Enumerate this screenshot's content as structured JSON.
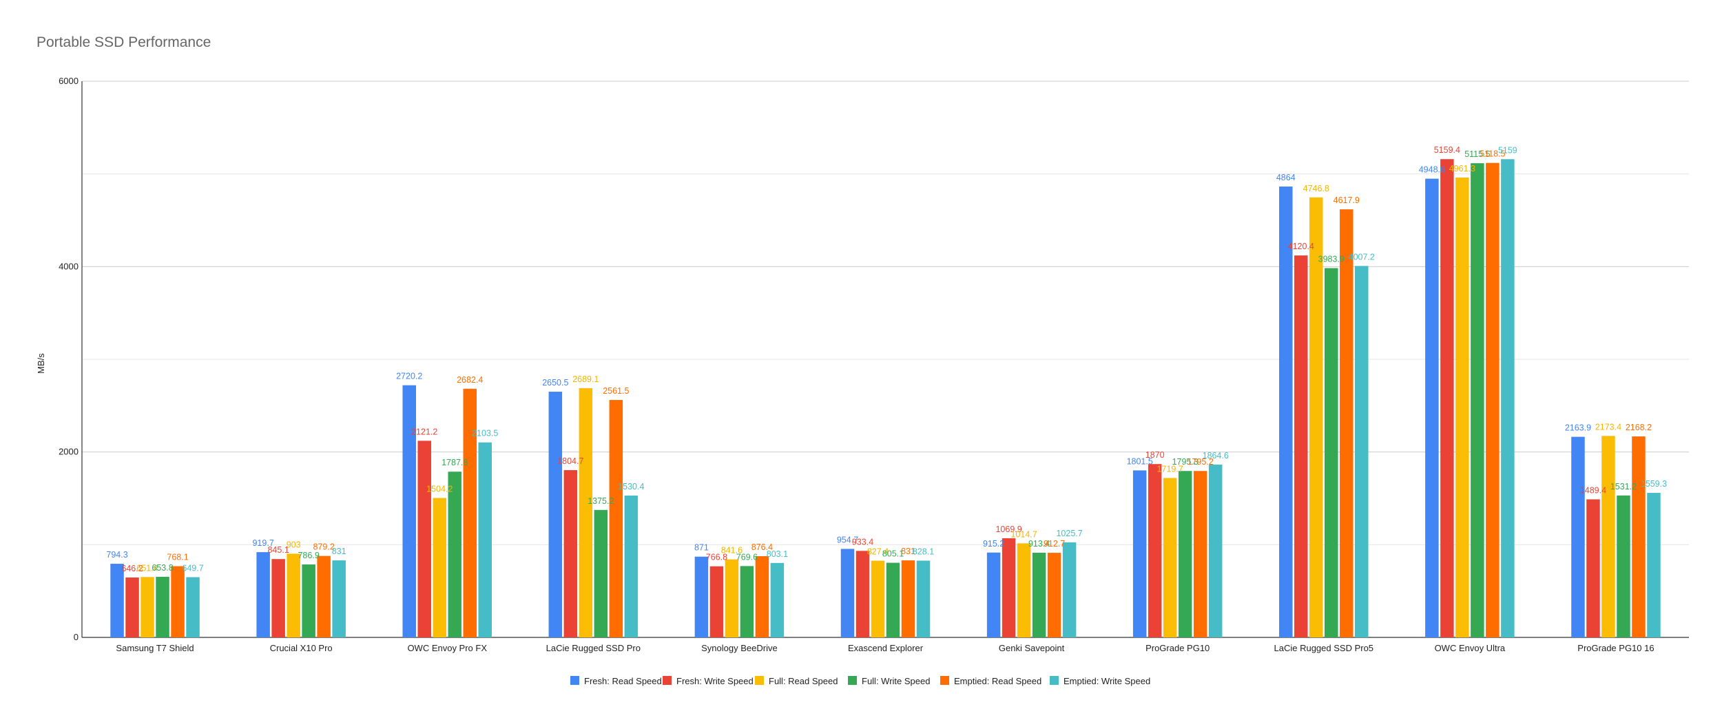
{
  "chart_data": {
    "type": "bar",
    "title": "Portable SSD Performance",
    "xlabel": "",
    "ylabel": "MB/s",
    "ylim": [
      0,
      6000
    ],
    "yticks": [
      0,
      2000,
      4000,
      6000
    ],
    "grid": true,
    "legend_position": "bottom",
    "categories": [
      "Samsung T7 Shield",
      "Crucial X10 Pro",
      "OWC Envoy Pro FX",
      "LaCie Rugged SSD Pro",
      "Synology BeeDrive",
      "Exascend Explorer",
      "Genki Savepoint",
      "ProGrade PG10",
      "LaCie Rugged SSD Pro5",
      "OWC Envoy Ultra",
      "ProGrade PG10 16"
    ],
    "series": [
      {
        "name": "Fresh: Read Speed",
        "color": "#4285f4",
        "values": [
          794.3,
          919.7,
          2720.2,
          2650.5,
          871,
          954.7,
          915.2,
          1801.5,
          4864,
          4948.6,
          2163.9
        ]
      },
      {
        "name": "Fresh: Write Speed",
        "color": "#ea4335",
        "values": [
          646.2,
          845.1,
          2121.2,
          1804.7,
          766.8,
          933.4,
          1069.9,
          1870,
          4120.4,
          5159.4,
          1489.4
        ]
      },
      {
        "name": "Full: Read Speed",
        "color": "#fbbc04",
        "values": [
          651.4,
          903,
          1504.2,
          2689.1,
          841.6,
          827.4,
          1014.7,
          1719.7,
          4746.8,
          4961.3,
          2173.4
        ]
      },
      {
        "name": "Full: Write Speed",
        "color": "#34a853",
        "values": [
          653.8,
          786.9,
          1787.8,
          1375.2,
          769.6,
          805.1,
          913.4,
          1795.3,
          3983.9,
          5115.5,
          1531.2
        ]
      },
      {
        "name": "Emptied: Read Speed",
        "color": "#ff6d01",
        "values": [
          768.1,
          879.2,
          2682.4,
          2561.5,
          876.4,
          831,
          912.7,
          1795.2,
          4617.9,
          5118.5,
          2168.2
        ]
      },
      {
        "name": "Emptied: Write Speed",
        "color": "#46bdc6",
        "values": [
          649.7,
          831,
          2103.5,
          1530.4,
          803.1,
          828.1,
          1025.7,
          1864.6,
          4007.2,
          5159,
          1559.3
        ]
      }
    ],
    "data_label_colors": [
      "#4285f4",
      "#ea4335",
      "#f5b400",
      "#34a853",
      "#ff6d01",
      "#46bdc6"
    ]
  }
}
